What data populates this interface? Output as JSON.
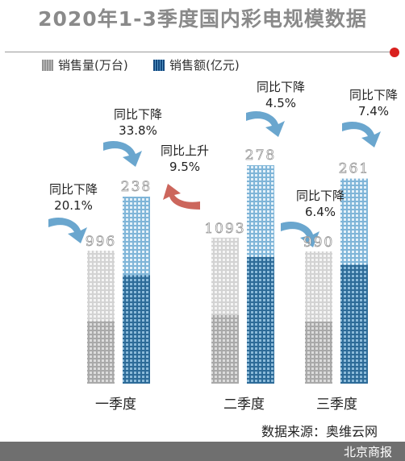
{
  "title": "2020年1-3季度国内彩电规模数据",
  "legend": {
    "gray": "销售量(万台)",
    "blue": "销售额(亿元)"
  },
  "source": "数据来源：奥维云网",
  "footer": "北京商报",
  "colors": {
    "gray": "#c8c8c8",
    "gray_dark": "#a8a8a8",
    "blue_light": "#a9cfe6",
    "blue_dark": "#3a7aa8",
    "arrow_down": "#5a9cc9",
    "arrow_up": "#c6554a",
    "accent_dot": "#d9211f"
  },
  "chart_data": {
    "type": "bar",
    "categories": [
      "一季度",
      "二季度",
      "三季度"
    ],
    "series": [
      {
        "name": "销售量(万台)",
        "values": [
          996,
          1093,
          990
        ]
      },
      {
        "name": "销售额(亿元)",
        "values": [
          238,
          278,
          261
        ]
      }
    ],
    "value_labels": {
      "gray": [
        "996",
        "1093",
        "990"
      ],
      "blue": [
        "238",
        "278",
        "261"
      ]
    },
    "annotations": [
      {
        "series": "销售量(万台)",
        "category": "一季度",
        "label": "同比下降",
        "value": "20.1%",
        "direction": "down"
      },
      {
        "series": "销售额(亿元)",
        "category": "一季度",
        "label": "同比下降",
        "value": "33.8%",
        "direction": "down"
      },
      {
        "series": "销售量(万台)",
        "category": "二季度",
        "label": "同比上升",
        "value": "9.5%",
        "direction": "up"
      },
      {
        "series": "销售额(亿元)",
        "category": "二季度",
        "label": "同比下降",
        "value": "4.5%",
        "direction": "down"
      },
      {
        "series": "销售量(万台)",
        "category": "三季度",
        "label": "同比下降",
        "value": "6.4%",
        "direction": "down"
      },
      {
        "series": "销售额(亿元)",
        "category": "三季度",
        "label": "同比下降",
        "value": "7.4%",
        "direction": "down"
      }
    ],
    "grid": false,
    "legend_position": "top-left"
  }
}
